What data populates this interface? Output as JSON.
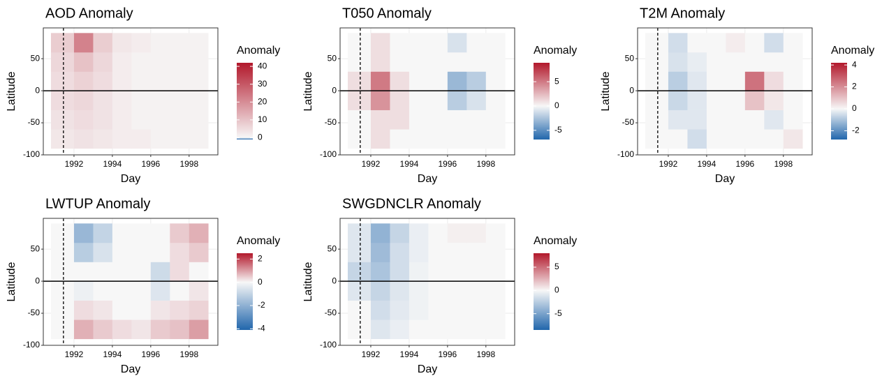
{
  "chart_data": [
    {
      "type": "heatmap",
      "title": "AOD Anomaly",
      "xlabel": "Day",
      "ylabel": "Latitude",
      "legend_title": "Anomaly",
      "x_edges": [
        1990.8,
        1992,
        1993,
        1994,
        1995,
        1996,
        1997,
        1998,
        1999
      ],
      "y_edges": [
        -90,
        -60,
        -30,
        0,
        30,
        60,
        90
      ],
      "z": [
        [
          3,
          4,
          3,
          2,
          2,
          1,
          1,
          1
        ],
        [
          4,
          5,
          4,
          2,
          1,
          1,
          1,
          1
        ],
        [
          5,
          6,
          4,
          2,
          1,
          1,
          1,
          1
        ],
        [
          5,
          7,
          5,
          2,
          1,
          1,
          1,
          1
        ],
        [
          6,
          10,
          6,
          2,
          1,
          1,
          1,
          1
        ],
        [
          8,
          22,
          8,
          3,
          2,
          1,
          1,
          1
        ]
      ],
      "xlim": [
        1990.4,
        1999.5
      ],
      "ylim": [
        -100,
        98
      ],
      "xticks": [
        1992,
        1994,
        1996,
        1998
      ],
      "yticks": [
        -100,
        -50,
        0,
        50
      ],
      "zlim": [
        -1,
        42
      ],
      "zticks": [
        0,
        10,
        20,
        30,
        40
      ],
      "colors": [
        "#2166ac",
        "#f7f7f7",
        "#b2182b"
      ],
      "vline": 1991.45,
      "hline": 0,
      "grid": true
    },
    {
      "type": "heatmap",
      "title": "T050 Anomaly",
      "xlabel": "Day",
      "ylabel": "Latitude",
      "legend_title": "Anomaly",
      "x_edges": [
        1990.8,
        1992,
        1993,
        1994,
        1995,
        1996,
        1997,
        1998,
        1999
      ],
      "y_edges": [
        -90,
        -60,
        -30,
        0,
        30,
        60,
        90
      ],
      "z": [
        [
          0,
          1,
          0,
          0,
          0,
          0,
          0,
          0
        ],
        [
          0,
          1,
          1,
          0,
          0,
          0,
          0,
          0
        ],
        [
          1,
          4,
          1,
          0,
          0,
          -2,
          -1,
          0
        ],
        [
          1,
          5,
          1,
          0,
          0,
          -3,
          -2,
          0
        ],
        [
          0,
          1,
          0,
          0,
          0,
          0,
          0,
          0
        ],
        [
          0,
          1,
          0,
          0,
          0,
          -1,
          0,
          0
        ]
      ],
      "xlim": [
        1990.4,
        1999.5
      ],
      "ylim": [
        -100,
        98
      ],
      "xticks": [
        1992,
        1994,
        1996,
        1998
      ],
      "yticks": [
        -100,
        -50,
        0,
        50
      ],
      "zlim": [
        -6.9,
        8.9
      ],
      "zticks": [
        -5,
        0,
        5
      ],
      "colors": [
        "#2166ac",
        "#f7f7f7",
        "#b2182b"
      ],
      "vline": 1991.45,
      "hline": 0,
      "grid": true
    },
    {
      "type": "heatmap",
      "title": "T2M Anomaly",
      "xlabel": "Day",
      "ylabel": "Latitude",
      "legend_title": "Anomaly",
      "x_edges": [
        1990.8,
        1992,
        1993,
        1994,
        1995,
        1996,
        1997,
        1998,
        1999
      ],
      "y_edges": [
        -90,
        -60,
        -30,
        0,
        30,
        60,
        90
      ],
      "z": [
        [
          0,
          0,
          -0.5,
          0,
          0,
          0,
          0,
          0.3
        ],
        [
          0,
          -0.3,
          -0.3,
          0,
          0,
          0,
          -0.3,
          0
        ],
        [
          0,
          -0.6,
          -0.3,
          0,
          0,
          1,
          0.3,
          0
        ],
        [
          0,
          -0.8,
          -0.3,
          0,
          0,
          2.5,
          0.5,
          0
        ],
        [
          0,
          -0.4,
          -0.2,
          0,
          0,
          0,
          0,
          0
        ],
        [
          0,
          -0.5,
          0,
          0,
          0.2,
          0,
          -0.5,
          0
        ]
      ],
      "xlim": [
        1990.4,
        1999.5
      ],
      "ylim": [
        -100,
        98
      ],
      "xticks": [
        1992,
        1994,
        1996,
        1998
      ],
      "yticks": [
        -100,
        -50,
        0,
        50
      ],
      "zlim": [
        -2.8,
        4.2
      ],
      "zticks": [
        -2,
        0,
        2,
        4
      ],
      "colors": [
        "#2166ac",
        "#f7f7f7",
        "#b2182b"
      ],
      "vline": 1991.45,
      "hline": 0,
      "grid": true
    },
    {
      "type": "heatmap",
      "title": "LWTUP Anomaly",
      "xlabel": "Day",
      "ylabel": "Latitude",
      "legend_title": "Anomaly",
      "x_edges": [
        1990.8,
        1992,
        1993,
        1994,
        1995,
        1996,
        1997,
        1998,
        1999
      ],
      "y_edges": [
        -90,
        -60,
        -30,
        0,
        30,
        60,
        90
      ],
      "z": [
        [
          0,
          0.8,
          0.5,
          0.3,
          0.2,
          0.5,
          0.6,
          1
        ],
        [
          0,
          0.3,
          0.2,
          0,
          0,
          0.2,
          0.3,
          0.4
        ],
        [
          0,
          -0.2,
          0,
          0,
          0,
          -0.5,
          0,
          0.2
        ],
        [
          0,
          0,
          0,
          0,
          0,
          -0.8,
          0.3,
          0
        ],
        [
          0,
          -1.2,
          -0.6,
          0,
          0,
          0,
          0.3,
          0.5
        ],
        [
          0,
          -1.8,
          -1,
          0,
          0,
          0,
          0.5,
          0.8
        ]
      ],
      "xlim": [
        1990.4,
        1999.5
      ],
      "ylim": [
        -100,
        98
      ],
      "xticks": [
        1992,
        1994,
        1996,
        1998
      ],
      "yticks": [
        -100,
        -50,
        0,
        50
      ],
      "zlim": [
        -4.1,
        2.5
      ],
      "zticks": [
        -4,
        -2,
        0,
        2
      ],
      "colors": [
        "#2166ac",
        "#f7f7f7",
        "#b2182b"
      ],
      "vline": 1991.45,
      "hline": 0,
      "grid": true
    },
    {
      "type": "heatmap",
      "title": "SWGDNCLR Anomaly",
      "xlabel": "Day",
      "ylabel": "Latitude",
      "legend_title": "Anomaly",
      "x_edges": [
        1990.8,
        1992,
        1993,
        1994,
        1995,
        1996,
        1997,
        1998,
        1999
      ],
      "y_edges": [
        -90,
        -60,
        -30,
        0,
        30,
        60,
        90
      ],
      "z": [
        [
          0,
          -1,
          -0.5,
          0,
          0,
          0,
          0,
          0
        ],
        [
          0,
          -1.5,
          -0.8,
          -0.3,
          0,
          0,
          0,
          0
        ],
        [
          -1,
          -2,
          -1,
          -0.3,
          0,
          0,
          0,
          0
        ],
        [
          -2,
          -3,
          -1.5,
          -0.3,
          0,
          0,
          0,
          0
        ],
        [
          -1,
          -3.5,
          -1.5,
          -0.5,
          0,
          0,
          0,
          0
        ],
        [
          -1,
          -4,
          -2,
          -0.5,
          0,
          0.3,
          0.3,
          0
        ]
      ],
      "xlim": [
        1990.4,
        1999.5
      ],
      "ylim": [
        -100,
        98
      ],
      "xticks": [
        1992,
        1994,
        1996,
        1998
      ],
      "yticks": [
        -100,
        -50,
        0,
        50
      ],
      "zlim": [
        -8.5,
        8
      ],
      "zticks": [
        -5,
        0,
        5
      ],
      "colors": [
        "#2166ac",
        "#f7f7f7",
        "#b2182b"
      ],
      "vline": 1991.45,
      "hline": 0,
      "grid": true
    }
  ]
}
